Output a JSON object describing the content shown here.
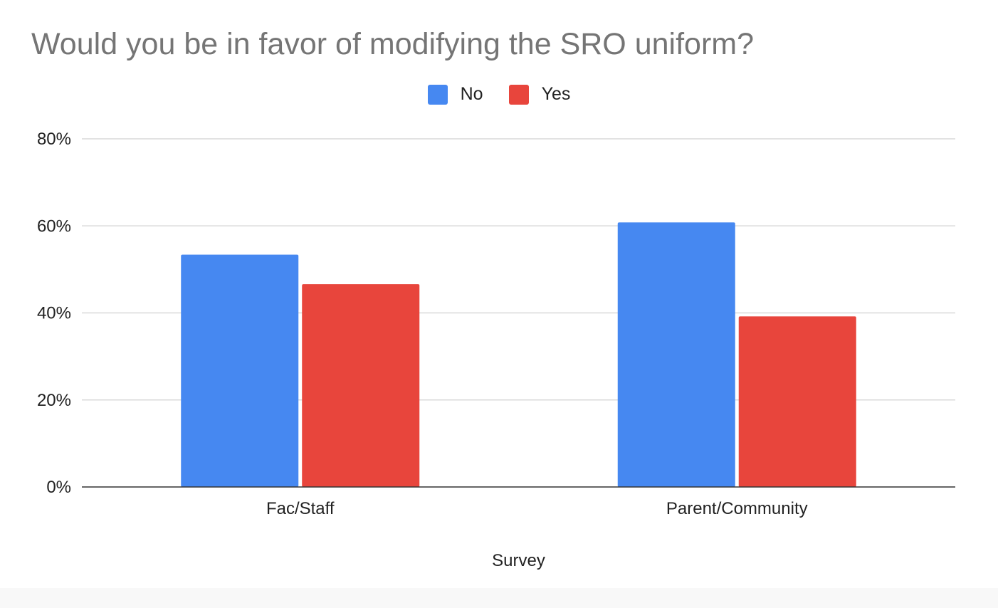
{
  "chart_data": {
    "type": "bar",
    "title": "Would you be in favor of modifying the SRO uniform?",
    "xlabel": "Survey",
    "ylabel": "",
    "categories": [
      "Fac/Staff",
      "Parent/Community"
    ],
    "series": [
      {
        "name": "No",
        "color": "#4688F1",
        "values": [
          53.4,
          60.8
        ]
      },
      {
        "name": "Yes",
        "color": "#E8453C",
        "values": [
          46.6,
          39.2
        ]
      }
    ],
    "ylim": [
      0,
      80
    ],
    "yticks": [
      "0%",
      "20%",
      "40%",
      "60%",
      "80%"
    ],
    "ytick_values": [
      0,
      20,
      40,
      60,
      80
    ],
    "grid": true,
    "legend_position": "top-center"
  }
}
